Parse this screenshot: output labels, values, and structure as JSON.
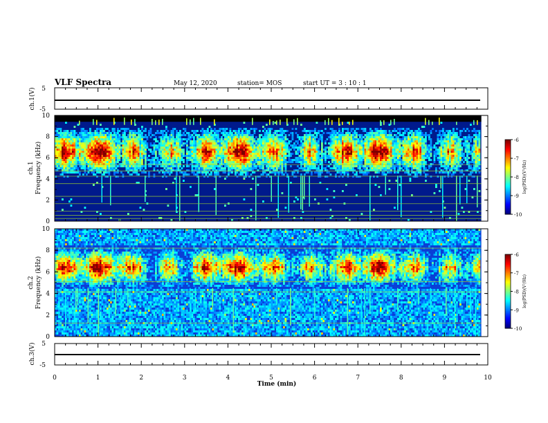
{
  "header": {
    "title": "VLF Spectra",
    "date": "May 12, 2020",
    "station": "station= MOS",
    "start": "start  UT =   3 : 10 : 1"
  },
  "chart_data": [
    {
      "type": "line",
      "ylabel": "ch.1(V)",
      "ylim": [
        -5,
        5
      ],
      "yticks": [
        "5",
        "-5"
      ],
      "series": [
        {
          "x": [
            0,
            9.85
          ],
          "values": [
            -1.2,
            -1.2
          ]
        }
      ]
    },
    {
      "type": "heatmap",
      "ylabel": "Frequency (kHz)",
      "ylabel2": "ch.1",
      "ylim": [
        0,
        10
      ],
      "yticks": [
        "0",
        "2",
        "4",
        "6",
        "8",
        "10"
      ],
      "xlim": [
        0,
        10
      ],
      "data_end_min": 9.85,
      "power_band_khz": [
        4.3,
        9.0
      ],
      "saturated_top_khz": [
        9.4,
        10
      ],
      "horizontal_lines_khz": [
        0.25,
        0.55,
        0.95,
        1.65,
        2.35,
        3.55,
        4.25,
        4.75,
        5.35
      ],
      "colorbar": {
        "label": "log(PSD)(V²/Hz)",
        "ticks": [
          "-6",
          "-7",
          "-8",
          "-9",
          "-10"
        ],
        "range": [
          -10,
          -6
        ]
      }
    },
    {
      "type": "heatmap",
      "ylabel": "Frequency (kHz)",
      "ylabel2": "ch.2",
      "ylim": [
        0,
        10
      ],
      "yticks": [
        "0",
        "2",
        "4",
        "6",
        "8",
        "10"
      ],
      "xlim": [
        0,
        10
      ],
      "data_end_min": 9.85,
      "power_band_khz": [
        4.5,
        8.5
      ],
      "horizontal_lines_khz": [
        1.25,
        4.15,
        5.1,
        8.2
      ],
      "colorbar": {
        "label": "log(PSD)(V²/Hz)",
        "ticks": [
          "-6",
          "-7",
          "-8",
          "-9",
          "-10"
        ],
        "range": [
          -10,
          -6
        ]
      }
    },
    {
      "type": "line",
      "ylabel": "ch.3(V)",
      "ylim": [
        -5,
        5
      ],
      "yticks": [
        "5",
        "-5"
      ],
      "series": [
        {
          "x": [
            0,
            9.85
          ],
          "values": [
            -1.2,
            -1.2
          ]
        }
      ]
    }
  ],
  "xaxis": {
    "label": "Time (min)",
    "ticks": [
      "0",
      "1",
      "2",
      "3",
      "4",
      "5",
      "6",
      "7",
      "8",
      "9",
      "10"
    ],
    "xlim": [
      0,
      10
    ]
  },
  "colors": {
    "saturated": "#000000",
    "bg1": "#001a8c",
    "bg2": "#0a3fd6",
    "line": "#9acd32",
    "axis": "#000000"
  }
}
